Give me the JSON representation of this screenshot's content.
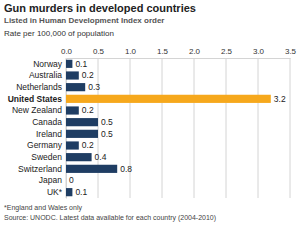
{
  "chart_data": {
    "type": "bar",
    "orientation": "horizontal",
    "title": "Gun murders in developed countries",
    "subtitle": "Listed in Human Development Index order",
    "xlabel": "Rate per 100,000 of population",
    "categories": [
      "Norway",
      "Australia",
      "Netherlands",
      "United States",
      "New Zealand",
      "Canada",
      "Ireland",
      "Germany",
      "Sweden",
      "Switzerland",
      "Japan",
      "UK*"
    ],
    "values": [
      0.1,
      0.2,
      0.3,
      3.2,
      0.2,
      0.5,
      0.5,
      0.2,
      0.4,
      0.8,
      0,
      0.1
    ],
    "colors": [
      "#1f3d63",
      "#1f3d63",
      "#1f3d63",
      "#f6a81c",
      "#1f3d63",
      "#1f3d63",
      "#1f3d63",
      "#1f3d63",
      "#1f3d63",
      "#1f3d63",
      "#1f3d63",
      "#1f3d63"
    ],
    "xlim": [
      0,
      3.5
    ],
    "xticks": [
      {
        "value": 0,
        "label": "0.0"
      },
      0.5,
      {
        "value": 1,
        "label": "1.0"
      },
      1.5,
      {
        "value": 2,
        "label": "2.0"
      },
      2.5,
      {
        "value": 3,
        "label": "3.0"
      },
      3.5
    ],
    "grid": true,
    "data_labels": true,
    "footnotes": [
      "*England and Wales only",
      "Source: UNODC. Latest data available for each country (2004-2010)"
    ]
  }
}
